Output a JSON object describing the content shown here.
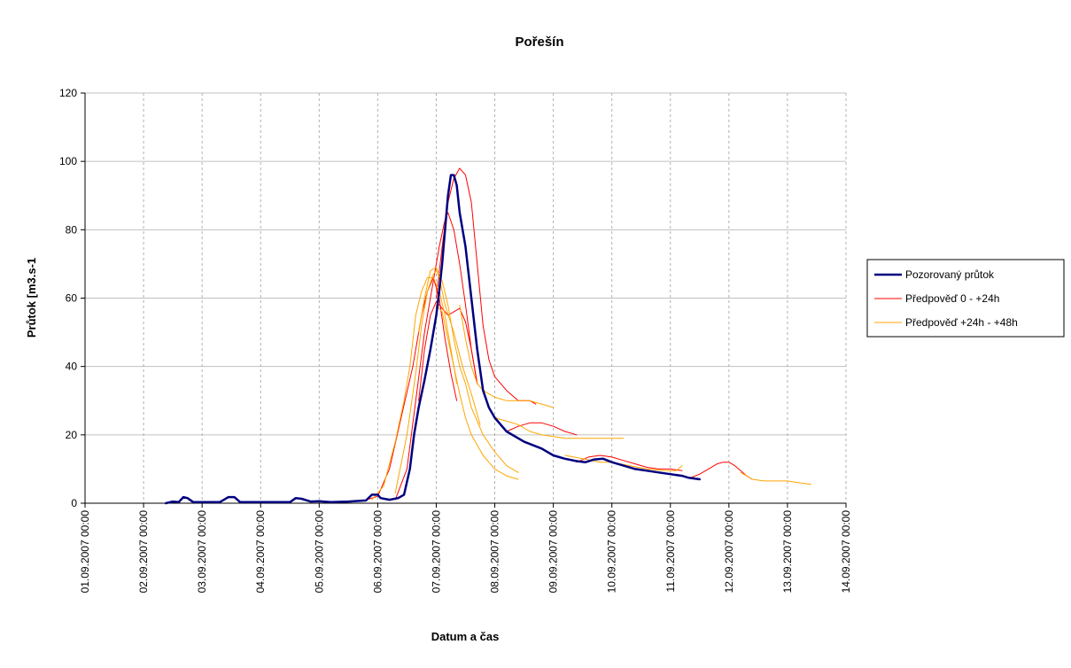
{
  "chart_data": {
    "type": "line",
    "title": "Pořešín",
    "xlabel": "Datum a čas",
    "ylabel": "Průtok [m3.s-1",
    "ylim": [
      0,
      120
    ],
    "yticks": [
      0,
      20,
      40,
      60,
      80,
      100,
      120
    ],
    "xlim": [
      0,
      13
    ],
    "xticks": [
      0,
      1,
      2,
      3,
      4,
      5,
      6,
      7,
      8,
      9,
      10,
      11,
      12,
      13
    ],
    "xtick_labels": [
      "01.09.2007 00:00",
      "02.09.2007 00:00",
      "03.09.2007 00:00",
      "04.09.2007 00:00",
      "05.09.2007 00:00",
      "06.09.2007 00:00",
      "07.09.2007 00:00",
      "08.09.2007 00:00",
      "09.09.2007 00:00",
      "10.09.2007 00:00",
      "11.09.2007 00:00",
      "12.09.2007 00:00",
      "13.09.2007 00:00",
      "14.09.2007 00:00"
    ],
    "x_unit": "days after 01.09.2007 00:00 (tick labels show the date)",
    "grid": {
      "horizontal": true,
      "vertical_dashed": true
    },
    "legend_position": "right",
    "legend": [
      {
        "name": "Pozorovaný průtok",
        "color": "#000080",
        "width": 2.5
      },
      {
        "name": "Předpověď 0 - +24h",
        "color": "#ff0000",
        "width": 1
      },
      {
        "name": "Předpověď +24h - +48h",
        "color": "#ffa500",
        "width": 1
      }
    ],
    "series": [
      {
        "name": "Pozorovaný průtok",
        "color": "#000080",
        "width": 2.5,
        "points": [
          [
            1.38,
            0
          ],
          [
            1.5,
            0.5
          ],
          [
            1.6,
            0.3
          ],
          [
            1.68,
            1.8
          ],
          [
            1.75,
            1.5
          ],
          [
            1.85,
            0.3
          ],
          [
            2.0,
            0.3
          ],
          [
            2.3,
            0.3
          ],
          [
            2.45,
            1.8
          ],
          [
            2.55,
            1.8
          ],
          [
            2.65,
            0.3
          ],
          [
            3.0,
            0.3
          ],
          [
            3.5,
            0.3
          ],
          [
            3.6,
            1.5
          ],
          [
            3.7,
            1.3
          ],
          [
            3.85,
            0.5
          ],
          [
            4.0,
            0.6
          ],
          [
            4.2,
            0.3
          ],
          [
            4.5,
            0.5
          ],
          [
            4.8,
            0.8
          ],
          [
            4.9,
            2.5
          ],
          [
            5.0,
            2.5
          ],
          [
            5.05,
            1.5
          ],
          [
            5.2,
            1.0
          ],
          [
            5.35,
            1.5
          ],
          [
            5.45,
            2.5
          ],
          [
            5.55,
            10
          ],
          [
            5.62,
            20
          ],
          [
            5.7,
            28
          ],
          [
            5.8,
            36
          ],
          [
            5.9,
            45
          ],
          [
            6.0,
            55
          ],
          [
            6.05,
            62
          ],
          [
            6.1,
            70
          ],
          [
            6.15,
            80
          ],
          [
            6.2,
            90
          ],
          [
            6.25,
            96
          ],
          [
            6.3,
            96
          ],
          [
            6.35,
            93
          ],
          [
            6.4,
            85
          ],
          [
            6.5,
            75
          ],
          [
            6.6,
            60
          ],
          [
            6.7,
            45
          ],
          [
            6.8,
            33
          ],
          [
            6.9,
            28
          ],
          [
            7.0,
            25
          ],
          [
            7.2,
            21
          ],
          [
            7.5,
            18
          ],
          [
            7.8,
            16
          ],
          [
            8.0,
            14
          ],
          [
            8.2,
            13
          ],
          [
            8.4,
            12.3
          ],
          [
            8.55,
            12
          ],
          [
            8.7,
            12.8
          ],
          [
            8.85,
            13
          ],
          [
            9.0,
            12
          ],
          [
            9.2,
            11
          ],
          [
            9.4,
            10
          ],
          [
            9.6,
            9.5
          ],
          [
            9.8,
            9
          ],
          [
            10.0,
            8.5
          ],
          [
            10.2,
            8
          ],
          [
            10.3,
            7.5
          ],
          [
            10.5,
            7
          ]
        ]
      },
      {
        "name": "Předpověď 0 - +24h",
        "color": "#ff0000",
        "width": 1,
        "points": [
          [
            4.7,
            0.5
          ],
          [
            5.0,
            2
          ],
          [
            5.2,
            10
          ],
          [
            5.4,
            25
          ],
          [
            5.6,
            40
          ],
          [
            5.75,
            55
          ],
          [
            5.85,
            62
          ],
          [
            5.95,
            66
          ],
          [
            6.05,
            60
          ],
          [
            6.15,
            48
          ],
          [
            6.25,
            38
          ],
          [
            6.35,
            30
          ]
        ]
      },
      {
        "name": "Předpověď 0 - +24h",
        "color": "#ff0000",
        "width": 1,
        "points": [
          [
            5.3,
            1
          ],
          [
            5.5,
            10
          ],
          [
            5.65,
            30
          ],
          [
            5.8,
            50
          ],
          [
            5.95,
            65
          ],
          [
            6.05,
            75
          ],
          [
            6.15,
            83
          ],
          [
            6.2,
            85
          ],
          [
            6.3,
            80
          ],
          [
            6.4,
            70
          ],
          [
            6.5,
            58
          ],
          [
            6.6,
            45
          ],
          [
            6.7,
            35
          ]
        ]
      },
      {
        "name": "Předpověď 0 - +24h",
        "color": "#ff0000",
        "width": 1,
        "points": [
          [
            5.7,
            30
          ],
          [
            5.8,
            45
          ],
          [
            5.9,
            55
          ],
          [
            6.0,
            59
          ],
          [
            6.1,
            57
          ],
          [
            6.2,
            55
          ],
          [
            6.3,
            56
          ],
          [
            6.4,
            57
          ],
          [
            6.5,
            53
          ],
          [
            6.6,
            45
          ],
          [
            6.7,
            35
          ]
        ]
      },
      {
        "name": "Předpověď 0 - +24h",
        "color": "#ff0000",
        "width": 1,
        "points": [
          [
            6.0,
            60
          ],
          [
            6.1,
            75
          ],
          [
            6.2,
            88
          ],
          [
            6.3,
            95
          ],
          [
            6.4,
            98
          ],
          [
            6.5,
            96
          ],
          [
            6.6,
            88
          ],
          [
            6.7,
            70
          ],
          [
            6.8,
            52
          ],
          [
            6.9,
            42
          ],
          [
            7.0,
            37
          ],
          [
            7.2,
            33
          ],
          [
            7.4,
            30
          ],
          [
            7.6,
            30
          ],
          [
            7.7,
            29
          ]
        ]
      },
      {
        "name": "Předpověď 0 - +24h",
        "color": "#ff0000",
        "width": 1,
        "points": [
          [
            7.2,
            21
          ],
          [
            7.4,
            22.5
          ],
          [
            7.6,
            23.5
          ],
          [
            7.8,
            23.5
          ],
          [
            8.0,
            22.5
          ],
          [
            8.2,
            21
          ],
          [
            8.4,
            20
          ]
        ]
      },
      {
        "name": "Předpověď 0 - +24h",
        "color": "#ff0000",
        "width": 1,
        "points": [
          [
            8.4,
            12
          ],
          [
            8.6,
            13.5
          ],
          [
            8.8,
            14
          ],
          [
            9.0,
            13.5
          ],
          [
            9.2,
            12.5
          ],
          [
            9.4,
            11.5
          ],
          [
            9.6,
            10.5
          ],
          [
            9.8,
            10
          ],
          [
            10.0,
            10
          ],
          [
            10.2,
            9.5
          ]
        ]
      },
      {
        "name": "Předpověď 0 - +24h",
        "color": "#ff0000",
        "width": 1,
        "points": [
          [
            10.35,
            7.5
          ],
          [
            10.5,
            8.5
          ],
          [
            10.65,
            10
          ],
          [
            10.8,
            11.5
          ],
          [
            10.9,
            12
          ],
          [
            11.0,
            12
          ],
          [
            11.1,
            11
          ],
          [
            11.2,
            9.5
          ],
          [
            11.3,
            8
          ],
          [
            11.4,
            7
          ]
        ]
      },
      {
        "name": "Předpověď +24h - +48h",
        "color": "#ffa500",
        "width": 1,
        "points": [
          [
            4.9,
            1
          ],
          [
            5.1,
            5
          ],
          [
            5.3,
            18
          ],
          [
            5.45,
            30
          ],
          [
            5.55,
            40
          ],
          [
            5.65,
            55
          ],
          [
            5.75,
            62
          ],
          [
            5.85,
            66
          ],
          [
            5.95,
            66
          ],
          [
            6.05,
            62
          ],
          [
            6.15,
            55
          ],
          [
            6.25,
            45
          ],
          [
            6.35,
            35
          ]
        ]
      },
      {
        "name": "Předpověď +24h - +48h",
        "color": "#ffa500",
        "width": 1,
        "points": [
          [
            5.3,
            3
          ],
          [
            5.5,
            20
          ],
          [
            5.65,
            38
          ],
          [
            5.75,
            52
          ],
          [
            5.85,
            62
          ],
          [
            5.95,
            67
          ],
          [
            6.0,
            68
          ],
          [
            6.05,
            66
          ],
          [
            6.15,
            58
          ],
          [
            6.3,
            50
          ],
          [
            6.45,
            40
          ],
          [
            6.6,
            32
          ],
          [
            6.75,
            23
          ]
        ]
      },
      {
        "name": "Předpověď +24h - +48h",
        "color": "#ffa500",
        "width": 1,
        "points": [
          [
            5.7,
            50
          ],
          [
            5.8,
            60
          ],
          [
            5.9,
            68
          ],
          [
            6.0,
            69
          ],
          [
            6.1,
            65
          ],
          [
            6.2,
            58
          ],
          [
            6.3,
            48
          ],
          [
            6.4,
            40
          ],
          [
            6.5,
            35
          ],
          [
            6.6,
            28
          ],
          [
            6.8,
            20
          ],
          [
            7.0,
            15
          ],
          [
            7.2,
            11
          ],
          [
            7.4,
            9
          ]
        ]
      },
      {
        "name": "Předpověď +24h - +48h",
        "color": "#ffa500",
        "width": 1,
        "points": [
          [
            6.0,
            58
          ],
          [
            6.1,
            56
          ],
          [
            6.2,
            48
          ],
          [
            6.3,
            40
          ],
          [
            6.4,
            32
          ],
          [
            6.5,
            25
          ],
          [
            6.6,
            20
          ],
          [
            6.7,
            17
          ],
          [
            6.8,
            14
          ],
          [
            6.9,
            12
          ],
          [
            7.0,
            10
          ],
          [
            7.2,
            8
          ],
          [
            7.4,
            7
          ]
        ]
      },
      {
        "name": "Předpověď +24h - +48h",
        "color": "#ffa500",
        "width": 1,
        "points": [
          [
            6.4,
            58
          ],
          [
            6.5,
            48
          ],
          [
            6.6,
            40
          ],
          [
            6.7,
            35
          ],
          [
            6.8,
            33
          ],
          [
            7.0,
            31
          ],
          [
            7.2,
            30
          ],
          [
            7.4,
            30
          ],
          [
            7.6,
            30
          ],
          [
            7.8,
            29
          ],
          [
            8.0,
            28
          ]
        ]
      },
      {
        "name": "Předpověď +24h - +48h",
        "color": "#ffa500",
        "width": 1,
        "points": [
          [
            7.0,
            25
          ],
          [
            7.2,
            24
          ],
          [
            7.4,
            23
          ],
          [
            7.6,
            21
          ],
          [
            7.8,
            20
          ],
          [
            8.0,
            19.5
          ],
          [
            8.2,
            19
          ],
          [
            8.5,
            19
          ],
          [
            8.8,
            19
          ],
          [
            9.2,
            19
          ]
        ]
      },
      {
        "name": "Předpověď +24h - +48h",
        "color": "#ffa500",
        "width": 1,
        "points": [
          [
            8.2,
            14
          ],
          [
            8.5,
            13
          ],
          [
            8.8,
            12
          ],
          [
            9.0,
            12
          ],
          [
            9.3,
            11
          ],
          [
            9.6,
            10
          ],
          [
            9.9,
            9.5
          ],
          [
            10.1,
            9.5
          ],
          [
            10.2,
            11
          ]
        ]
      },
      {
        "name": "Předpověď +24h - +48h",
        "color": "#ffa500",
        "width": 1,
        "points": [
          [
            11.2,
            9
          ],
          [
            11.4,
            7
          ],
          [
            11.6,
            6.5
          ],
          [
            11.8,
            6.5
          ],
          [
            12.0,
            6.5
          ],
          [
            12.2,
            6
          ],
          [
            12.4,
            5.5
          ]
        ]
      }
    ]
  }
}
